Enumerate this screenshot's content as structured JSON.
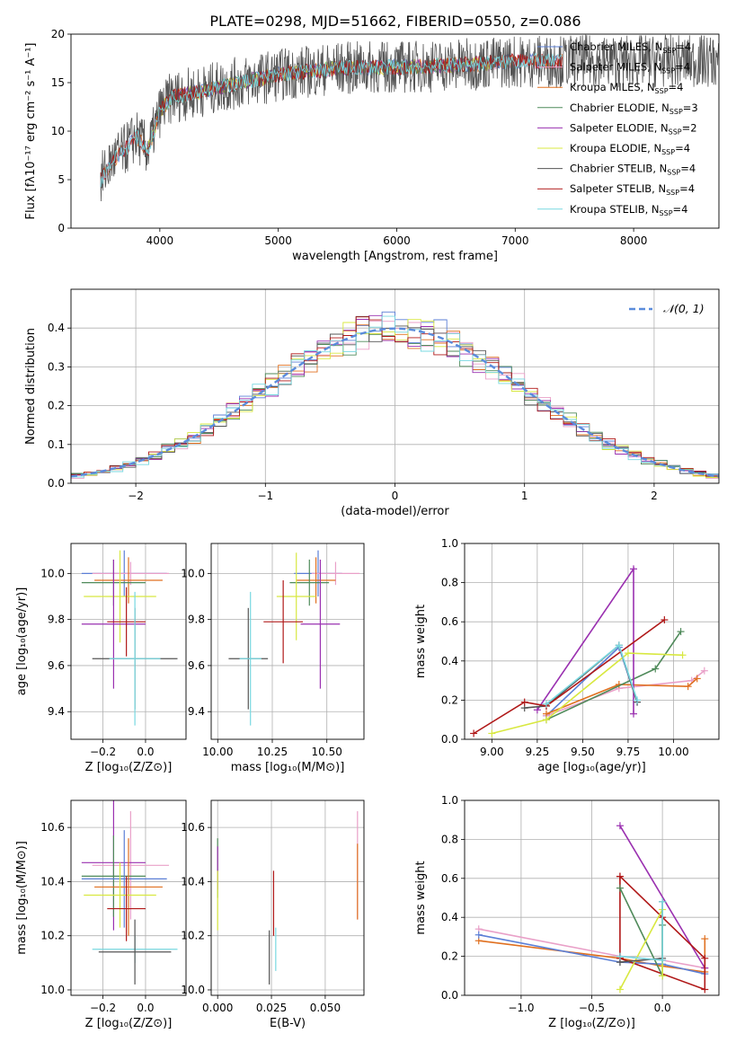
{
  "figure": {
    "title": "PLATE=0298, MJD=51662, FIBERID=0550, z=0.086"
  },
  "chart_data": [
    {
      "id": "spectrum",
      "type": "line",
      "xlabel": "wavelength [Angstrom, rest frame]",
      "ylabel": "Flux [fλ10⁻¹⁷ erg cm⁻² s⁻¹ A⁻¹]",
      "xlim": [
        3250,
        8720
      ],
      "ylim": [
        0,
        20
      ],
      "xticks": [
        4000,
        5000,
        6000,
        7000,
        8000
      ],
      "yticks": [
        0,
        5,
        10,
        15,
        20
      ],
      "grid": false,
      "legend_position": "top-right",
      "continuum_x": [
        3500,
        3600,
        3700,
        3800,
        3900,
        4000,
        4100,
        4300,
        4600,
        5000,
        5500,
        6000,
        6500,
        7000,
        7400
      ],
      "continuum_y": [
        5,
        7,
        8,
        9.5,
        8,
        12,
        13.5,
        14,
        14.8,
        15.8,
        16.5,
        16.6,
        16.8,
        17.2,
        17.2
      ],
      "series": [
        {
          "name": "Chabrier MILES, N_SSP=4",
          "label_main": "Chabrier MILES, N",
          "label_sub": "SSP",
          "label_tail": "=4",
          "color": "#5b7fd6",
          "x_range": [
            3500,
            7400
          ]
        },
        {
          "name": "Salpeter MILES, N_SSP=4",
          "label_main": "Salpeter MILES, N",
          "label_sub": "SSP",
          "label_tail": "=4",
          "color": "#e9a0c8",
          "x_range": [
            3500,
            7400
          ]
        },
        {
          "name": "Kroupa MILES, N_SSP=4",
          "label_main": "Kroupa MILES, N",
          "label_sub": "SSP",
          "label_tail": "=4",
          "color": "#e07020",
          "x_range": [
            3500,
            7400
          ]
        },
        {
          "name": "Chabrier ELODIE, N_SSP=3",
          "label_main": "Chabrier ELODIE, N",
          "label_sub": "SSP",
          "label_tail": "=3",
          "color": "#4f8a5a",
          "x_range": [
            3900,
            6800
          ]
        },
        {
          "name": "Salpeter ELODIE, N_SSP=2",
          "label_main": "Salpeter ELODIE, N",
          "label_sub": "SSP",
          "label_tail": "=2",
          "color": "#9a30b0",
          "x_range": [
            3900,
            6800
          ]
        },
        {
          "name": "Kroupa ELODIE, N_SSP=4",
          "label_main": "Kroupa ELODIE, N",
          "label_sub": "SSP",
          "label_tail": "=4",
          "color": "#d8e840",
          "x_range": [
            3900,
            6800
          ]
        },
        {
          "name": "Chabrier STELIB, N_SSP=4",
          "label_main": "Chabrier STELIB, N",
          "label_sub": "SSP",
          "label_tail": "=4",
          "color": "#555555",
          "x_range": [
            3500,
            8720
          ]
        },
        {
          "name": "Salpeter STELIB, N_SSP=4",
          "label_main": "Salpeter STELIB, N",
          "label_sub": "SSP",
          "label_tail": "=4",
          "color": "#b01818",
          "x_range": [
            3500,
            7400
          ]
        },
        {
          "name": "Kroupa STELIB, N_SSP=4",
          "label_main": "Kroupa STELIB, N",
          "label_sub": "SSP",
          "label_tail": "=4",
          "color": "#78d8e0",
          "x_range": [
            3500,
            7400
          ]
        }
      ]
    },
    {
      "id": "residuals",
      "type": "line",
      "xlabel": "(data-model)/error",
      "ylabel": "Normed distribution",
      "xlim": [
        -2.5,
        2.5
      ],
      "ylim": [
        0,
        0.5
      ],
      "xticks": [
        -2,
        -1,
        0,
        1,
        2
      ],
      "xtick_labels": [
        "−2",
        "−1",
        "0",
        "1",
        "2"
      ],
      "yticks": [
        0,
        0.1,
        0.2,
        0.3,
        0.4
      ],
      "ytick_labels": [
        "0.0",
        "0.1",
        "0.2",
        "0.3",
        "0.4"
      ],
      "grid": true,
      "legend_position": "top-right",
      "reference": {
        "name": "N(0,1)",
        "label": "𝒩(0, 1)",
        "color": "#5b8cdc",
        "mean": 0,
        "sigma": 1
      }
    },
    {
      "id": "age_vs_Z",
      "type": "scatter",
      "xlabel": "Z [log₁₀(Z/Z⊙)]",
      "ylabel": "age  [log₁₀(age/yr)]",
      "xlim": [
        -0.35,
        0.19
      ],
      "ylim": [
        9.28,
        10.13
      ],
      "xticks": [
        -0.2,
        0.0
      ],
      "xtick_labels": [
        "−0.2",
        "0.0"
      ],
      "yticks": [
        9.4,
        9.6,
        9.8,
        10.0
      ],
      "ytick_labels": [
        "9.4",
        "9.6",
        "9.8",
        "10.0"
      ],
      "grid": true,
      "points": [
        {
          "color": "#5b7fd6",
          "x": -0.1,
          "y": 10.0,
          "xerr": 0.2,
          "yerr": 0.1
        },
        {
          "color": "#e9a0c8",
          "x": -0.07,
          "y": 10.0,
          "xerr": 0.18,
          "yerr": 0.05
        },
        {
          "color": "#e07020",
          "x": -0.08,
          "y": 9.97,
          "xerr": 0.16,
          "yerr": 0.1
        },
        {
          "color": "#4f8a5a",
          "x": -0.15,
          "y": 9.96,
          "xerr": 0.15,
          "yerr": 0.1
        },
        {
          "color": "#d8e840",
          "x": -0.12,
          "y": 9.9,
          "xerr": 0.17,
          "yerr": 0.2
        },
        {
          "color": "#9a30b0",
          "x": -0.15,
          "y": 9.78,
          "xerr": 0.15,
          "yerr": 0.28
        },
        {
          "color": "#b01818",
          "x": -0.09,
          "y": 9.79,
          "xerr": 0.09,
          "yerr": 0.15
        },
        {
          "color": "#555555",
          "x": -0.05,
          "y": 9.63,
          "xerr": 0.2,
          "yerr": 0.22
        },
        {
          "color": "#78d8e0",
          "x": -0.05,
          "y": 9.63,
          "xerr": 0.12,
          "yerr": 0.29
        }
      ]
    },
    {
      "id": "age_vs_mass",
      "type": "scatter",
      "xlabel": "mass [log₁₀(M/M⊙)]",
      "ylabel": "",
      "xlim": [
        9.97,
        10.67
      ],
      "ylim": [
        9.28,
        10.13
      ],
      "xticks": [
        10.0,
        10.25,
        10.5
      ],
      "xtick_labels": [
        "10.00",
        "10.25",
        "10.50"
      ],
      "yticks": [
        9.4,
        9.6,
        9.8,
        10.0
      ],
      "ytick_labels": [
        "9.4",
        "9.6",
        "9.8",
        "10.0"
      ],
      "grid": true,
      "points": [
        {
          "color": "#5b7fd6",
          "x": 10.46,
          "y": 10.0,
          "xerr": 0.11,
          "yerr": 0.1
        },
        {
          "color": "#e9a0c8",
          "x": 10.54,
          "y": 10.0,
          "xerr": 0.11,
          "yerr": 0.05
        },
        {
          "color": "#e07020",
          "x": 10.45,
          "y": 9.97,
          "xerr": 0.09,
          "yerr": 0.1
        },
        {
          "color": "#4f8a5a",
          "x": 10.42,
          "y": 9.96,
          "xerr": 0.09,
          "yerr": 0.1
        },
        {
          "color": "#d8e840",
          "x": 10.36,
          "y": 9.9,
          "xerr": 0.09,
          "yerr": 0.19
        },
        {
          "color": "#9a30b0",
          "x": 10.47,
          "y": 9.78,
          "xerr": 0.09,
          "yerr": 0.28
        },
        {
          "color": "#b01818",
          "x": 10.3,
          "y": 9.79,
          "xerr": 0.09,
          "yerr": 0.18
        },
        {
          "color": "#555555",
          "x": 10.14,
          "y": 9.63,
          "xerr": 0.09,
          "yerr": 0.22
        },
        {
          "color": "#78d8e0",
          "x": 10.15,
          "y": 9.63,
          "xerr": 0.05,
          "yerr": 0.29
        }
      ]
    },
    {
      "id": "massweight_vs_age",
      "type": "line",
      "xlabel": "age  [log₁₀(age/yr)]",
      "ylabel": "mass weight",
      "xlim": [
        8.85,
        10.25
      ],
      "ylim": [
        0,
        1.0
      ],
      "xticks": [
        9.0,
        9.25,
        9.5,
        9.75,
        10.0
      ],
      "xtick_labels": [
        "9.00",
        "9.25",
        "9.50",
        "9.75",
        "10.00"
      ],
      "yticks": [
        0,
        0.2,
        0.4,
        0.6,
        0.8,
        1.0
      ],
      "ytick_labels": [
        "0.0",
        "0.2",
        "0.4",
        "0.6",
        "0.8",
        "1.0"
      ],
      "grid": true,
      "series": [
        {
          "color": "#5b7fd6",
          "x": [
            9.3,
            9.7,
            9.8
          ],
          "y": [
            0.12,
            0.47,
            0.19
          ]
        },
        {
          "color": "#e9a0c8",
          "x": [
            9.3,
            9.7,
            10.1,
            10.17
          ],
          "y": [
            0.12,
            0.26,
            0.3,
            0.35
          ]
        },
        {
          "color": "#e07020",
          "x": [
            9.3,
            9.7,
            10.08,
            10.13
          ],
          "y": [
            0.13,
            0.28,
            0.27,
            0.31
          ]
        },
        {
          "color": "#4f8a5a",
          "x": [
            9.3,
            9.9,
            10.04
          ],
          "y": [
            0.1,
            0.36,
            0.55
          ]
        },
        {
          "color": "#9a30b0",
          "x": [
            9.25,
            9.78,
            9.78
          ],
          "y": [
            0.15,
            0.87,
            0.13
          ]
        },
        {
          "color": "#d8e840",
          "x": [
            9.0,
            9.3,
            9.75,
            10.05
          ],
          "y": [
            0.03,
            0.1,
            0.44,
            0.43
          ]
        },
        {
          "color": "#555555",
          "x": [
            9.18,
            9.3,
            9.7,
            9.8
          ],
          "y": [
            0.16,
            0.17,
            0.48,
            0.19
          ]
        },
        {
          "color": "#b01818",
          "x": [
            8.9,
            9.18,
            9.3,
            9.95
          ],
          "y": [
            0.03,
            0.19,
            0.17,
            0.61
          ]
        },
        {
          "color": "#78d8e0",
          "x": [
            9.3,
            9.7,
            9.8
          ],
          "y": [
            0.18,
            0.48,
            0.2
          ]
        }
      ]
    },
    {
      "id": "mass_vs_Z",
      "type": "scatter",
      "xlabel": "Z [log₁₀(Z/Z⊙)]",
      "ylabel": "mass [log₁₀(M/M⊙)]",
      "xlim": [
        -0.35,
        0.19
      ],
      "ylim": [
        9.98,
        10.7
      ],
      "xticks": [
        -0.2,
        0.0
      ],
      "xtick_labels": [
        "−0.2",
        "0.0"
      ],
      "yticks": [
        10.0,
        10.2,
        10.4,
        10.6
      ],
      "ytick_labels": [
        "10.0",
        "10.2",
        "10.4",
        "10.6"
      ],
      "grid": true,
      "points": [
        {
          "color": "#e9a0c8",
          "x": -0.07,
          "y": 10.46,
          "xerr": 0.18,
          "yerr": 0.2
        },
        {
          "color": "#9a30b0",
          "x": -0.15,
          "y": 10.47,
          "xerr": 0.15,
          "yerr": 0.25
        },
        {
          "color": "#4f8a5a",
          "x": -0.15,
          "y": 10.42,
          "xerr": 0.15,
          "yerr": 0.15
        },
        {
          "color": "#5b7fd6",
          "x": -0.1,
          "y": 10.41,
          "xerr": 0.2,
          "yerr": 0.18
        },
        {
          "color": "#e07020",
          "x": -0.08,
          "y": 10.38,
          "xerr": 0.16,
          "yerr": 0.18
        },
        {
          "color": "#d8e840",
          "x": -0.12,
          "y": 10.35,
          "xerr": 0.17,
          "yerr": 0.12
        },
        {
          "color": "#b01818",
          "x": -0.09,
          "y": 10.3,
          "xerr": 0.09,
          "yerr": 0.12
        },
        {
          "color": "#78d8e0",
          "x": -0.05,
          "y": 10.15,
          "xerr": 0.2,
          "yerr": 0.05
        },
        {
          "color": "#555555",
          "x": -0.05,
          "y": 10.14,
          "xerr": 0.17,
          "yerr": 0.12
        }
      ]
    },
    {
      "id": "mass_vs_ebv",
      "type": "scatter",
      "xlabel": "E(B-V)",
      "ylabel": "",
      "xlim": [
        -0.003,
        0.068
      ],
      "ylim": [
        9.98,
        10.7
      ],
      "xticks": [
        0.0,
        0.025,
        0.05
      ],
      "xtick_labels": [
        "0.000",
        "0.025",
        "0.050"
      ],
      "yticks": [
        10.0,
        10.2,
        10.4,
        10.6
      ],
      "ytick_labels": [
        "10.0",
        "10.2",
        "10.4",
        "10.6"
      ],
      "grid": true,
      "points": [
        {
          "color": "#4f8a5a",
          "x": 0.0,
          "y": 10.45,
          "xerr": 0,
          "yerr": 0.11
        },
        {
          "color": "#9a30b0",
          "x": 0.0,
          "y": 10.45,
          "xerr": 0,
          "yerr": 0.08
        },
        {
          "color": "#d8e840",
          "x": 0.0,
          "y": 10.33,
          "xerr": 0,
          "yerr": 0.11
        },
        {
          "color": "#555555",
          "x": 0.024,
          "y": 10.12,
          "xerr": 0,
          "yerr": 0.1
        },
        {
          "color": "#b01818",
          "x": 0.026,
          "y": 10.32,
          "xerr": 0,
          "yerr": 0.12
        },
        {
          "color": "#78d8e0",
          "x": 0.027,
          "y": 10.15,
          "xerr": 0,
          "yerr": 0.08
        },
        {
          "color": "#e9a0c8",
          "x": 0.065,
          "y": 10.46,
          "xerr": 0,
          "yerr": 0.2
        },
        {
          "color": "#e07020",
          "x": 0.065,
          "y": 10.4,
          "xerr": 0,
          "yerr": 0.14
        }
      ]
    },
    {
      "id": "massweight_vs_Z",
      "type": "line",
      "xlabel": "Z [log₁₀(Z/Z⊙)]",
      "ylabel": "mass weight",
      "xlim": [
        -1.4,
        0.4
      ],
      "ylim": [
        0,
        1.0
      ],
      "xticks": [
        -1.0,
        -0.5,
        0.0
      ],
      "xtick_labels": [
        "−1.0",
        "−0.5",
        "0.0"
      ],
      "yticks": [
        0,
        0.2,
        0.4,
        0.6,
        0.8,
        1.0
      ],
      "ytick_labels": [
        "0.0",
        "0.2",
        "0.4",
        "0.6",
        "0.8",
        "1.0"
      ],
      "grid": true,
      "series": [
        {
          "color": "#e9a0c8",
          "x": [
            -1.3,
            -0.3,
            0.0,
            0.3
          ],
          "y": [
            0.34,
            0.2,
            0.18,
            0.14
          ]
        },
        {
          "color": "#e07020",
          "x": [
            -1.3,
            -0.3,
            0.0,
            0.3,
            0.3
          ],
          "y": [
            0.28,
            0.19,
            0.15,
            0.12,
            0.29
          ]
        },
        {
          "color": "#5b7fd6",
          "x": [
            -1.3,
            -0.3,
            0.0,
            0.3
          ],
          "y": [
            0.31,
            0.17,
            0.16,
            0.11
          ]
        },
        {
          "color": "#9a30b0",
          "x": [
            -0.3,
            0.3
          ],
          "y": [
            0.87,
            0.14
          ]
        },
        {
          "color": "#b01818",
          "x": [
            -0.3,
            0.0,
            0.3,
            0.3,
            -0.3,
            -0.3
          ],
          "y": [
            0.61,
            0.4,
            0.19,
            0.03,
            0.19,
            0.61
          ]
        },
        {
          "color": "#4f8a5a",
          "x": [
            -0.3,
            0.0,
            0.0
          ],
          "y": [
            0.55,
            0.1,
            0.36
          ]
        },
        {
          "color": "#d8e840",
          "x": [
            -0.3,
            0.0,
            0.0
          ],
          "y": [
            0.03,
            0.44,
            0.1
          ]
        },
        {
          "color": "#555555",
          "x": [
            -0.3,
            0.0,
            0.0
          ],
          "y": [
            0.17,
            0.19,
            0.48
          ]
        },
        {
          "color": "#78d8e0",
          "x": [
            -0.3,
            0.0,
            0.0
          ],
          "y": [
            0.2,
            0.18,
            0.48
          ]
        }
      ]
    }
  ]
}
